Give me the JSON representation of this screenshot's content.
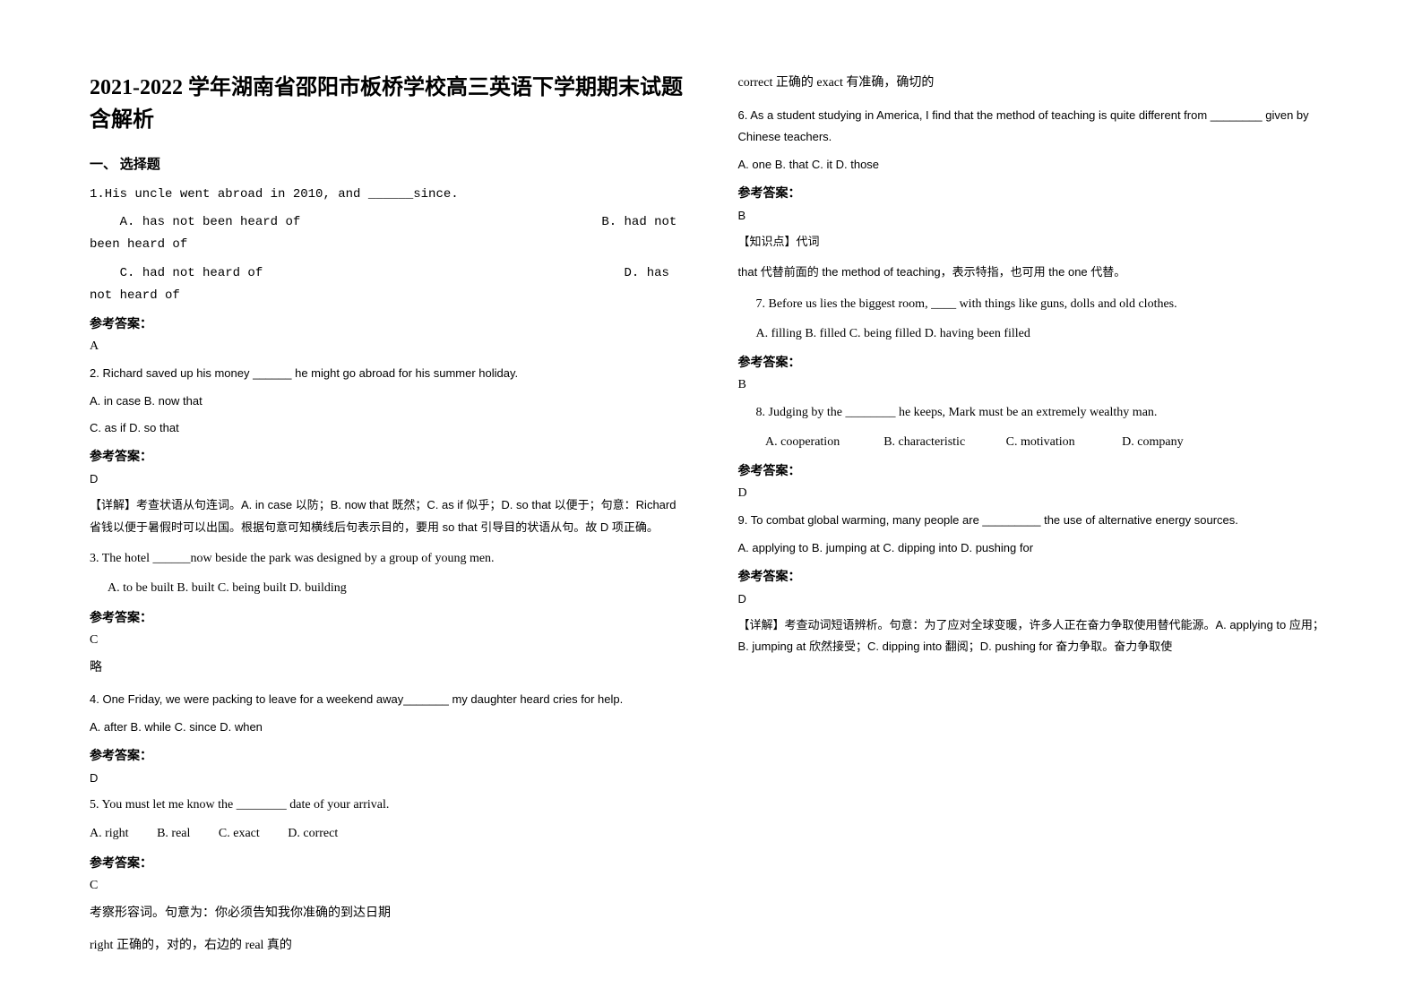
{
  "title": "2021-2022 学年湖南省邵阳市板桥学校高三英语下学期期末试题含解析",
  "section1": "一、 选择题",
  "q1": {
    "stem": "1.His uncle went abroad in 2010, and ______since.",
    "optA": "A. has not been heard of",
    "optB": "B. had not been heard of",
    "optC": "C. had not heard of",
    "optD": "D. has not heard of",
    "ansLabel": "参考答案：",
    "ans": "A"
  },
  "q2": {
    "stem": "2. Richard saved up his money ______ he might go abroad for his summer holiday.",
    "line1": "A. in case    B. now that",
    "line2": "C. as if    D. so that",
    "ansLabel": "参考答案：",
    "ans": "D",
    "expl": "【详解】考查状语从句连词。A. in case 以防；B. now that 既然；C. as if 似乎；D. so that 以便于；句意：Richard 省钱以便于暑假时可以出国。根据句意可知横线后句表示目的，要用 so that 引导目的状语从句。故 D 项正确。"
  },
  "q3": {
    "stem": "3. The hotel ______now beside the park was designed by a group of young men.",
    "opts": "A. to be built     B. built    C. being built    D. building",
    "ansLabel": "参考答案：",
    "ans": "C",
    "expl": "略"
  },
  "q4": {
    "stem": "4. One Friday, we were packing to leave for a weekend away_______ my daughter heard cries for help.",
    "opts": "A. after   B. while   C. since   D. when",
    "ansLabel": "参考答案：",
    "ans": "D"
  },
  "q5": {
    "stem": "5. You must let me know the ________ date of your arrival.",
    "optA": "A. right",
    "optB": "B. real",
    "optC": "C. exact",
    "optD": "D. correct",
    "ansLabel": "参考答案：",
    "ans": "C",
    "expl1": "考察形容词。句意为：你必须告知我你准确的到达日期",
    "expl2": "right 正确的，对的，右边的     real 真的",
    "expl3": "correct 正确的              exact 有准确，确切的"
  },
  "q6": {
    "stem": "6. As a student studying in America, I find that the method of teaching is quite different from ________ given by Chinese teachers.",
    "opts": "A. one      B. that      C. it      D. those",
    "ansLabel": "参考答案：",
    "ans": "B",
    "expl1": "【知识点】代词",
    "expl2": "that 代替前面的 the method of teaching，表示特指，也可用 the one 代替。"
  },
  "q7": {
    "stem": "7.  Before us lies the biggest room, ____ with things like guns, dolls and old clothes.",
    "opts": "A. filling         B. filled         C. being filled        D. having been filled",
    "ansLabel": "参考答案：",
    "ans": "B"
  },
  "q8": {
    "stem": "8.  Judging by the ________ he keeps, Mark must be an extremely wealthy man.",
    "optA": "A. cooperation",
    "optB": "B. characteristic",
    "optC": "C. motivation",
    "optD": "D. company",
    "ansLabel": "参考答案：",
    "ans": "D"
  },
  "q9": {
    "stem": "9. To combat global warming, many people are _________ the use of alternative energy sources.",
    "opts": "A. applying to    B. jumping at    C. dipping into   D. pushing for",
    "ansLabel": "参考答案：",
    "ans": "D",
    "expl": "【详解】考查动词短语辨析。句意：为了应对全球变暖，许多人正在奋力争取使用替代能源。A. applying to 应用；B. jumping at 欣然接受；C. dipping into 翻阅；D. pushing for 奋力争取。奋力争取使"
  }
}
